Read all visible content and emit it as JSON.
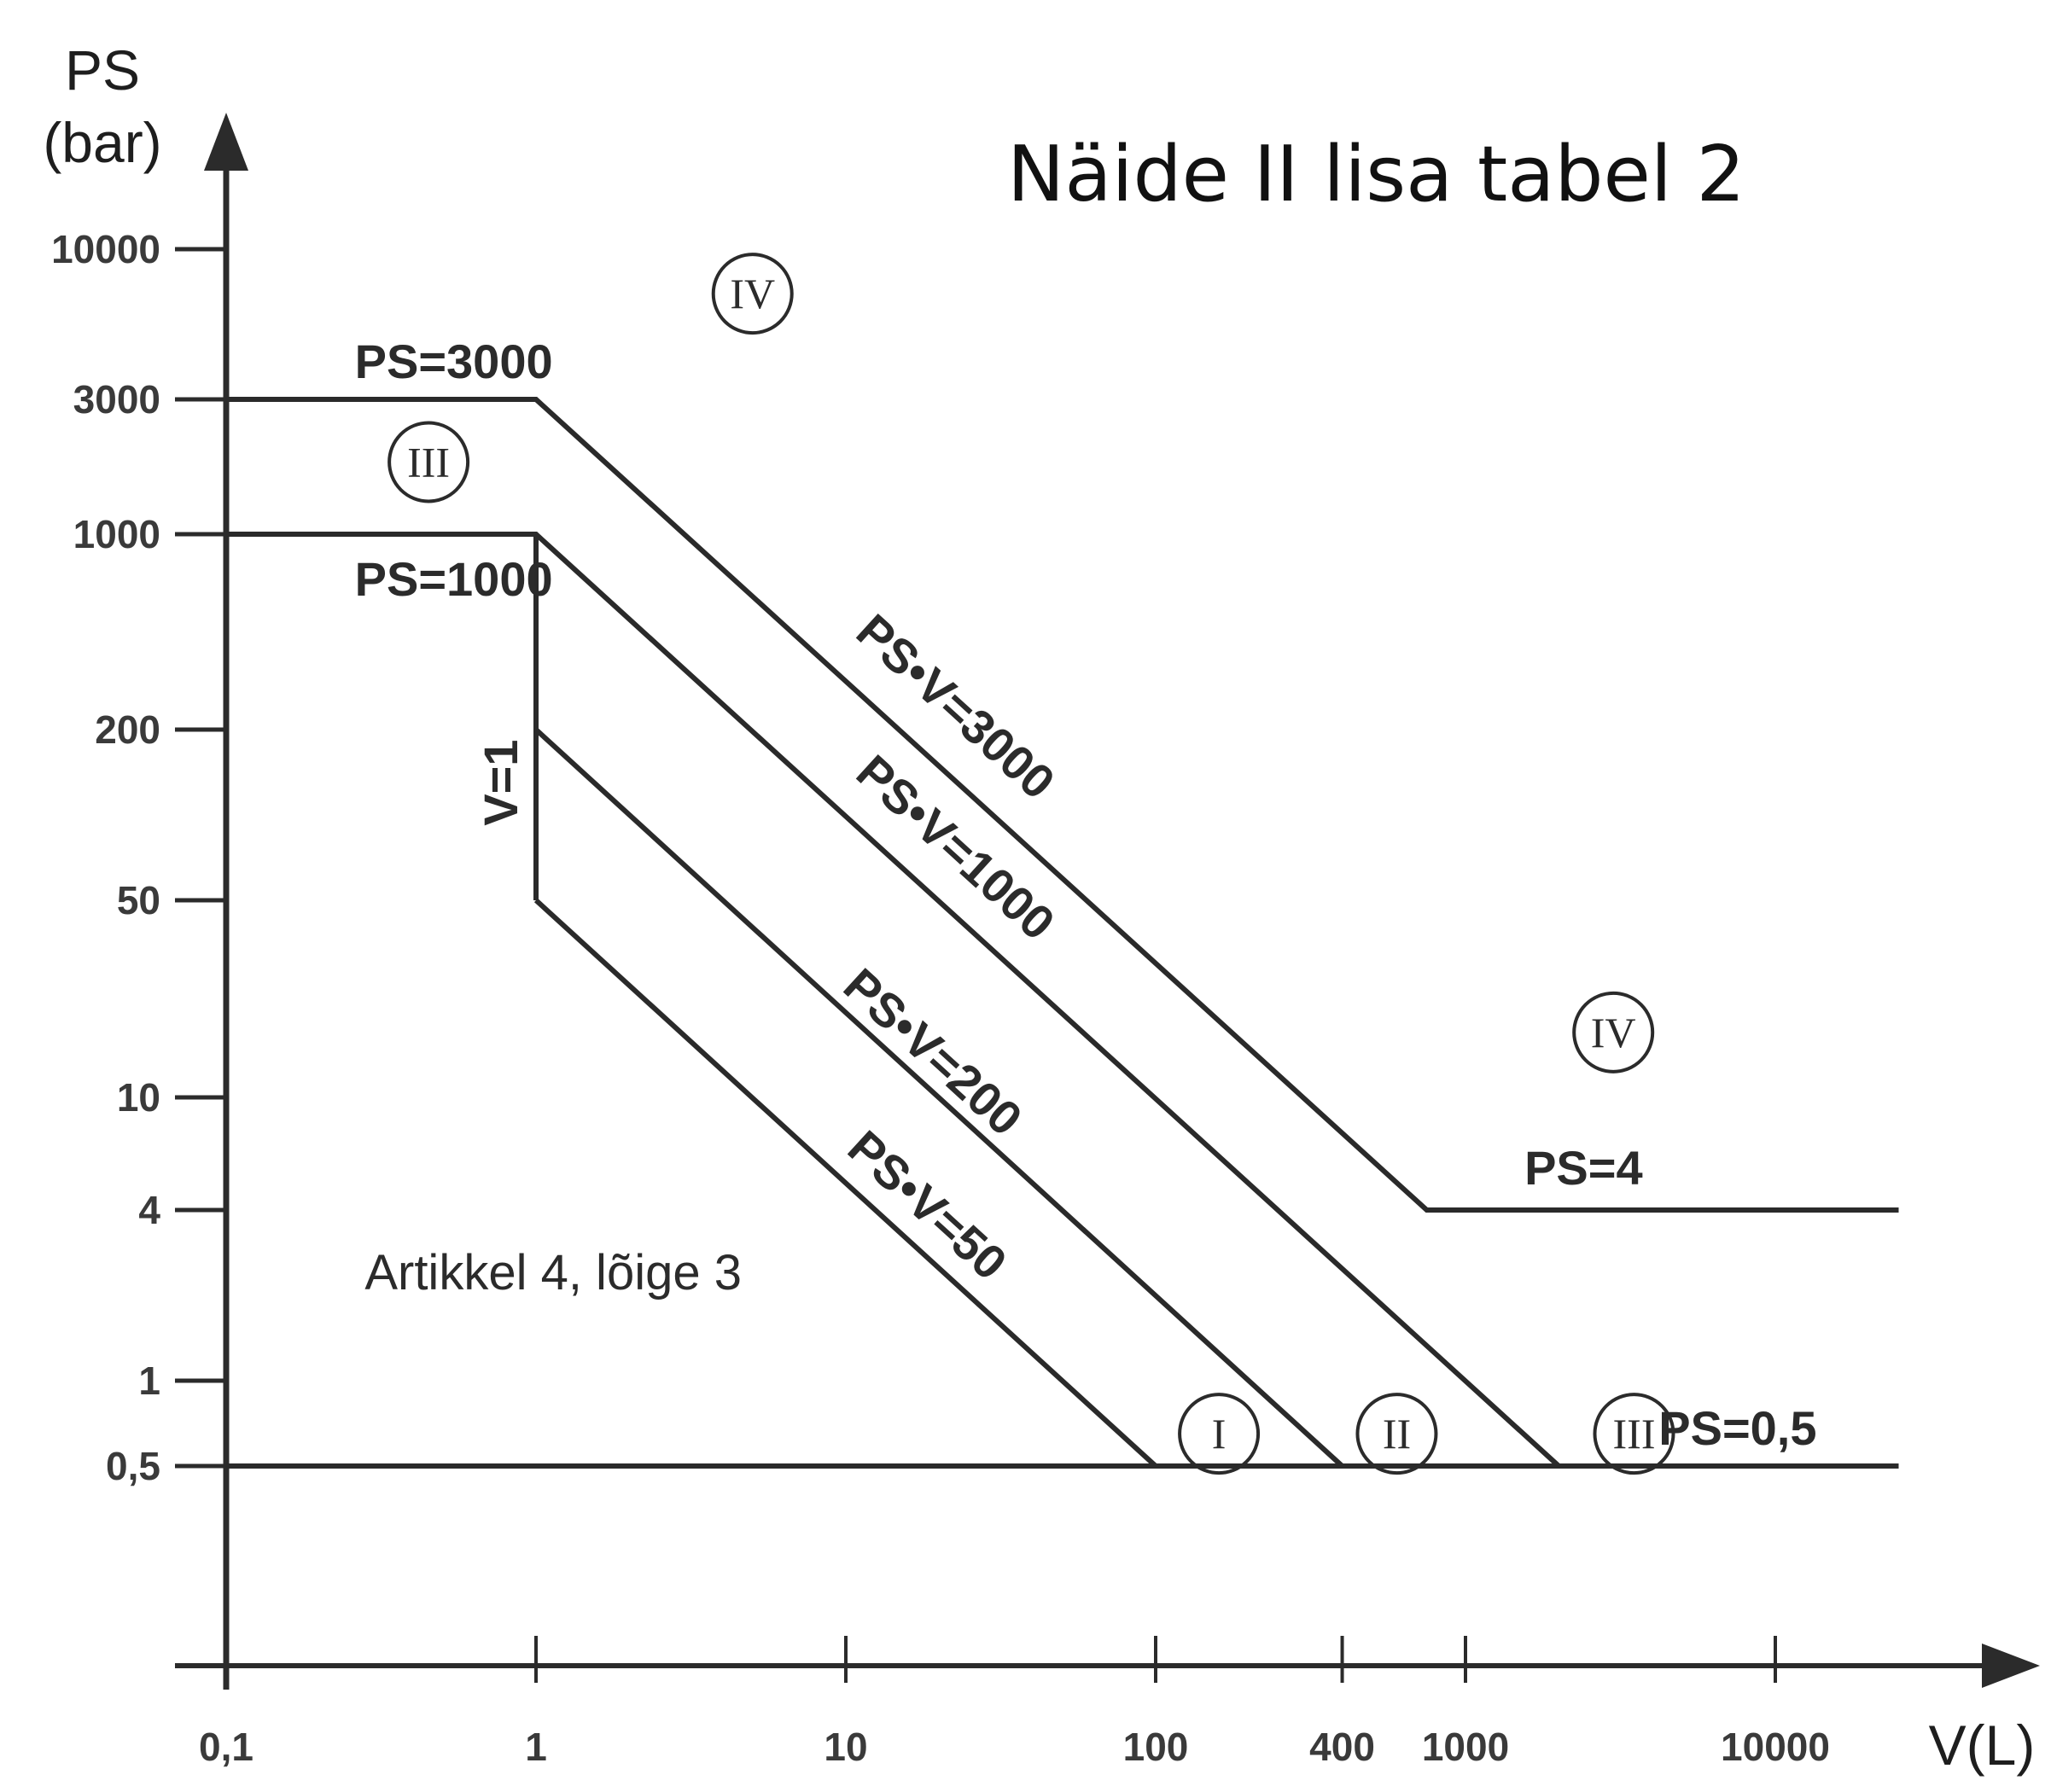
{
  "chart_data": {
    "type": "line",
    "title": "Näide II lisa tabel 2",
    "xlabel": "V(L)",
    "ylabel_line1": "PS",
    "ylabel_line2": "(bar)",
    "x_scale": "log",
    "y_scale": "log",
    "grid": false,
    "x_ticks": [
      {
        "value": 0.1,
        "label": "0,1"
      },
      {
        "value": 1,
        "label": "1"
      },
      {
        "value": 10,
        "label": "10"
      },
      {
        "value": 100,
        "label": "100"
      },
      {
        "value": 400,
        "label": "400"
      },
      {
        "value": 1000,
        "label": "1000"
      },
      {
        "value": 10000,
        "label": "10000"
      }
    ],
    "y_ticks": [
      {
        "value": 0.5,
        "label": "0,5"
      },
      {
        "value": 1,
        "label": "1"
      },
      {
        "value": 4,
        "label": "4"
      },
      {
        "value": 10,
        "label": "10"
      },
      {
        "value": 50,
        "label": "50"
      },
      {
        "value": 200,
        "label": "200"
      },
      {
        "value": 1000,
        "label": "1000"
      },
      {
        "value": 3000,
        "label": "3000"
      },
      {
        "value": 10000,
        "label": "10000"
      }
    ],
    "series": [
      {
        "points": [
          [
            0.1,
            3000
          ],
          [
            1,
            3000
          ],
          [
            750,
            4
          ],
          [
            25000,
            4
          ]
        ]
      },
      {
        "points": [
          [
            0.1,
            1000
          ],
          [
            1,
            1000
          ],
          [
            2000,
            0.5
          ]
        ]
      },
      {
        "points": [
          [
            1,
            1000
          ],
          [
            1,
            50
          ]
        ]
      },
      {
        "points": [
          [
            1,
            200
          ],
          [
            400,
            0.5
          ]
        ]
      },
      {
        "points": [
          [
            1,
            50
          ],
          [
            100,
            0.5
          ]
        ]
      },
      {
        "points": [
          [
            0.1,
            0.5
          ],
          [
            25000,
            0.5
          ]
        ]
      }
    ],
    "annotations": [
      {
        "text": "PS=3000",
        "x": 0.3,
        "y": 3000
      },
      {
        "text": "PS=1000",
        "x": 0.3,
        "y": 1000
      },
      {
        "text": "V=1",
        "x": 0.9,
        "y": 160
      },
      {
        "text": "PS•V=3000",
        "x": 50,
        "y": 60
      },
      {
        "text": "PS•V=1000",
        "x": 50,
        "y": 20
      },
      {
        "text": "PS•V=200",
        "x": 40,
        "y": 5
      },
      {
        "text": "PS•V=50",
        "x": 40,
        "y": 1.2
      },
      {
        "text": "PS=4",
        "x": 1800,
        "y": 4
      },
      {
        "text": "PS=0,5",
        "x": 6000,
        "y": 0.5
      },
      {
        "text": "Artikkel 4, lõige 3",
        "x": 0.3,
        "y": 2
      }
    ],
    "category_markers": [
      {
        "text": "IV",
        "x": 5,
        "y": 7000
      },
      {
        "text": "III",
        "x": 0.45,
        "y": 1800
      },
      {
        "text": "IV",
        "x": 3000,
        "y": 17
      },
      {
        "text": "I",
        "x": 160,
        "y": 0.65
      },
      {
        "text": "II",
        "x": 600,
        "y": 0.65
      },
      {
        "text": "III",
        "x": 3500,
        "y": 0.65
      }
    ]
  }
}
